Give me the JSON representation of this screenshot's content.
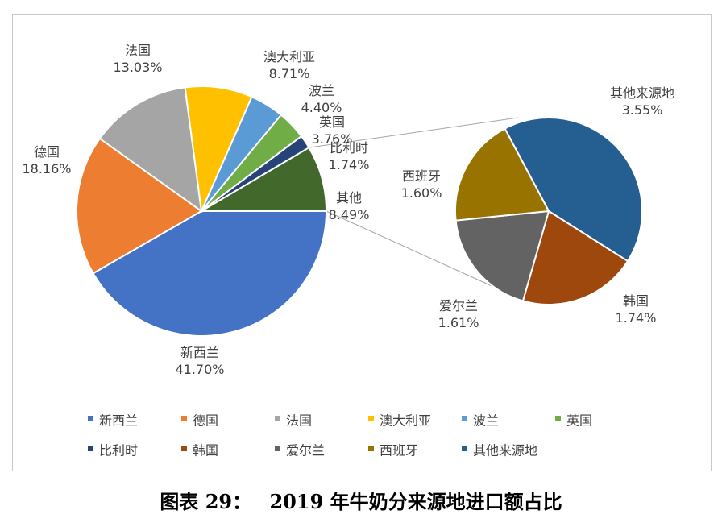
{
  "caption": {
    "prefix": "图表 29：",
    "title": "2019 年牛奶分来源地进口额占比"
  },
  "chart_data": {
    "type": "pie",
    "subtype": "pie-of-pie",
    "main": {
      "categories": [
        "新西兰",
        "德国",
        "法国",
        "澳大利亚",
        "波兰",
        "英国",
        "比利时",
        "其他"
      ],
      "values": [
        41.7,
        18.16,
        13.03,
        8.71,
        4.4,
        3.76,
        1.74,
        8.49
      ],
      "labels": [
        "41.70%",
        "18.16%",
        "13.03%",
        "8.71%",
        "4.40%",
        "3.76%",
        "1.74%",
        "8.49%"
      ],
      "colors": [
        "#4472C4",
        "#ED7D31",
        "#A5A5A5",
        "#FFC000",
        "#5B9BD5",
        "#70AD47",
        "#264478",
        "#43682B"
      ]
    },
    "secondary": {
      "categories": [
        "其他来源地",
        "韩国",
        "爱尔兰",
        "西班牙"
      ],
      "values": [
        3.55,
        1.74,
        1.61,
        1.6
      ],
      "labels": [
        "3.55%",
        "1.74%",
        "1.61%",
        "1.60%"
      ],
      "colors": [
        "#255E91",
        "#9E480E",
        "#636363",
        "#997300"
      ]
    },
    "legend": {
      "position": "bottom",
      "items": [
        {
          "name": "新西兰",
          "color": "#4472C4"
        },
        {
          "name": "德国",
          "color": "#ED7D31"
        },
        {
          "name": "法国",
          "color": "#A5A5A5"
        },
        {
          "name": "澳大利亚",
          "color": "#FFC000"
        },
        {
          "name": "波兰",
          "color": "#5B9BD5"
        },
        {
          "name": "英国",
          "color": "#70AD47"
        },
        {
          "name": "比利时",
          "color": "#264478"
        },
        {
          "name": "韩国",
          "color": "#9E480E"
        },
        {
          "name": "爱尔兰",
          "color": "#636363"
        },
        {
          "name": "西班牙",
          "color": "#997300"
        },
        {
          "name": "其他来源地",
          "color": "#255E91"
        }
      ]
    }
  }
}
